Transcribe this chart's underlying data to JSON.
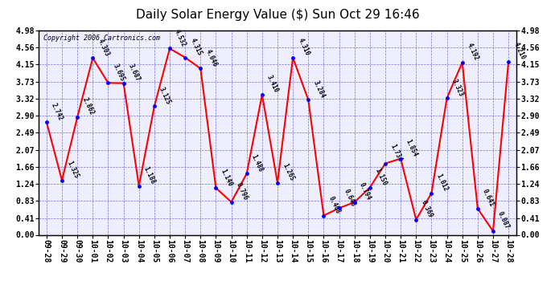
{
  "title": "Daily Solar Energy Value ($) Sun Oct 29 16:46",
  "copyright": "Copyright 2006 Cartronics.com",
  "x_labels": [
    "09-28",
    "09-29",
    "09-30",
    "10-01",
    "10-02",
    "10-03",
    "10-04",
    "10-05",
    "10-06",
    "10-07",
    "10-08",
    "10-09",
    "10-10",
    "10-11",
    "10-12",
    "10-13",
    "10-14",
    "10-15",
    "10-16",
    "10-17",
    "10-18",
    "10-19",
    "10-20",
    "10-21",
    "10-22",
    "10-23",
    "10-24",
    "10-25",
    "10-26",
    "10-27",
    "10-28"
  ],
  "y_values": [
    2.742,
    1.325,
    2.862,
    4.303,
    3.695,
    3.687,
    1.188,
    3.125,
    4.532,
    4.315,
    4.046,
    1.14,
    0.796,
    1.488,
    3.41,
    1.265,
    4.31,
    3.284,
    0.468,
    0.648,
    0.794,
    1.15,
    1.734,
    1.854,
    0.369,
    1.012,
    3.323,
    4.192,
    0.641,
    0.087,
    4.21
  ],
  "point_labels": [
    "2.742",
    "1.325",
    "2.862",
    "4.303",
    "3.695",
    "3.687",
    "1.188",
    "3.125",
    "4.532",
    "4.315",
    "4.046",
    "1.140",
    "0.796",
    "1.488",
    "3.410",
    "1.265",
    "4.310",
    "3.284",
    "0.468",
    "0.648",
    "0.794",
    "1.150",
    "1.734",
    "1.854",
    "0.369",
    "1.012",
    "3.323",
    "4.192",
    "0.641",
    "0.087",
    "4.210"
  ],
  "y_ticks": [
    0.0,
    0.41,
    0.83,
    1.24,
    1.66,
    2.07,
    2.49,
    2.9,
    3.32,
    3.73,
    4.15,
    4.56,
    4.98
  ],
  "y_min": 0.0,
  "y_max": 4.98,
  "line_color": "red",
  "marker_color": "blue",
  "bg_color": "#ffffff",
  "plot_bg_color": "#eeeeff",
  "grid_color": "#5555cc",
  "title_fontsize": 11,
  "copyright_fontsize": 6,
  "tick_fontsize": 7,
  "label_fontsize": 5.5
}
